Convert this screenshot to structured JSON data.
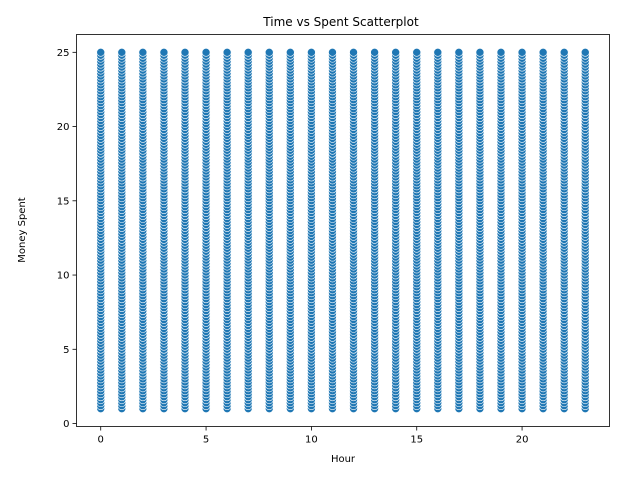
{
  "chart_data": {
    "type": "scatter",
    "title": "Time vs Spent Scatterplot",
    "xlabel": "Hour",
    "ylabel": "Money Spent",
    "xlim": [
      -1.15,
      24.15
    ],
    "ylim": [
      -0.2,
      26.2
    ],
    "xticks": [
      0,
      5,
      10,
      15,
      20
    ],
    "yticks": [
      0,
      5,
      10,
      15,
      20,
      25
    ],
    "grid": false,
    "legend": "none",
    "marker_color": "#1f77b4",
    "marker_edge": "#ffffff",
    "series": [
      {
        "x_values": [
          0,
          1,
          2,
          3,
          4,
          5,
          6,
          7,
          8,
          9,
          10,
          11,
          12,
          13,
          14,
          15,
          16,
          17,
          18,
          19,
          20,
          21,
          22,
          23
        ],
        "y_range": [
          1,
          25
        ],
        "y_resolution": 0.2,
        "description": "For each hour 0-23, money spent values densely cover the range 1 to 25"
      }
    ]
  }
}
